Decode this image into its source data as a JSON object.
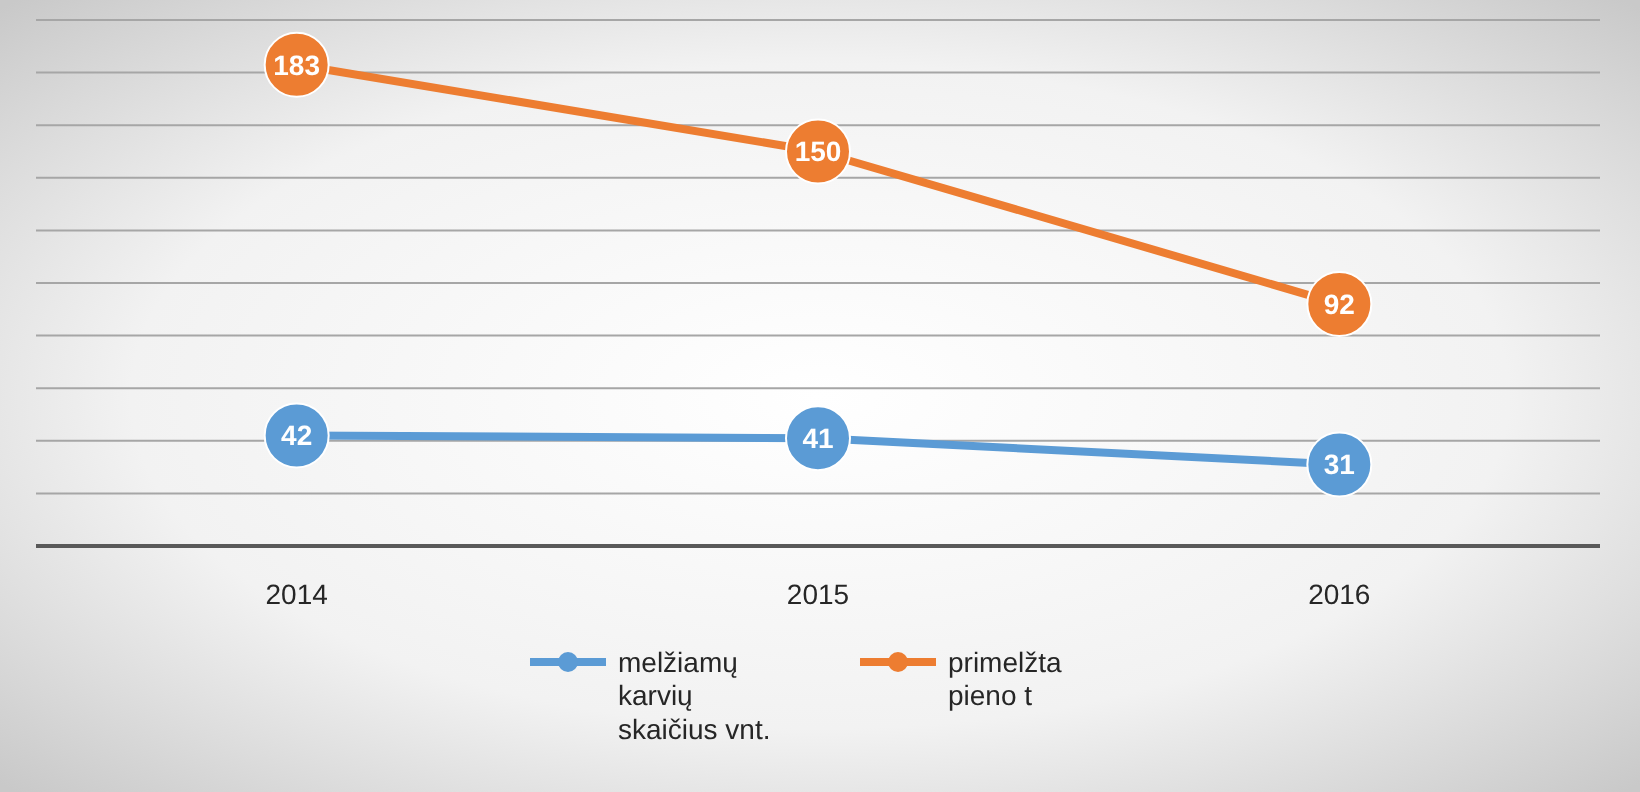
{
  "chart_data": {
    "type": "line",
    "categories": [
      "2014",
      "2015",
      "2016"
    ],
    "series": [
      {
        "name": "melžiamų karvių skaičius vnt.",
        "color": "#5b9bd5",
        "values": [
          42,
          41,
          31
        ]
      },
      {
        "name": "primelžta pieno t",
        "color": "#ed7d31",
        "values": [
          183,
          150,
          92
        ]
      }
    ],
    "ylim": [
      0,
      200
    ],
    "yticks": [
      {
        "value": 0,
        "label": null
      },
      {
        "value": 20,
        "label": null
      },
      {
        "value": 40,
        "label": null
      },
      {
        "value": 60,
        "label": null
      },
      {
        "value": 80,
        "label": null
      },
      {
        "value": 100,
        "label": null
      },
      {
        "value": 120,
        "label": null
      },
      {
        "value": 140,
        "label": null
      },
      {
        "value": 160,
        "label": null
      },
      {
        "value": 180,
        "label": null
      },
      {
        "value": 200,
        "label": null
      }
    ],
    "tick_labels": "x",
    "grid": "y",
    "data_labels": true,
    "marker": "circle",
    "line_style": "solid",
    "legend": "bottom"
  }
}
